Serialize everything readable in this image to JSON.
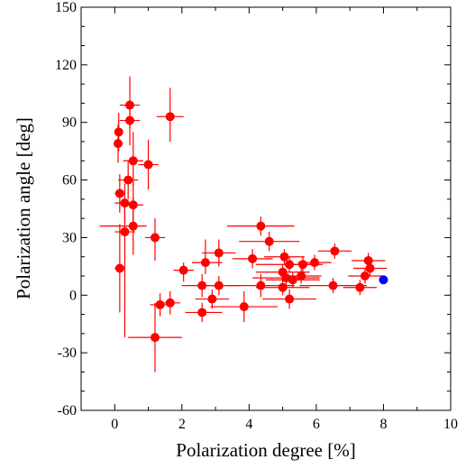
{
  "chart_data": {
    "type": "scatter",
    "title": "",
    "xlabel": "Polarization degree [%]",
    "ylabel": "Polarization angle [deg]",
    "xlim": [
      -1,
      10
    ],
    "ylim": [
      -60,
      150
    ],
    "xticks": [
      0,
      2,
      4,
      6,
      8,
      10
    ],
    "xtick_labels": [
      "0",
      "2",
      "4",
      "6",
      "8",
      "10"
    ],
    "yticks": [
      -60,
      -30,
      0,
      30,
      60,
      90,
      120,
      150
    ],
    "ytick_labels": [
      "-60",
      "-30",
      "0",
      "30",
      "60",
      "90",
      "120",
      "150"
    ],
    "grid": false,
    "legend": "none",
    "colors": {
      "main": "#ff0000",
      "highlight": "#0000ff"
    },
    "series": [
      {
        "color": "#ff0000",
        "points": [
          {
            "x": 0.1,
            "y": 79,
            "xerr": [
              0.1,
              0.1
            ],
            "yerr": [
              10,
              10
            ]
          },
          {
            "x": 0.12,
            "y": 85,
            "xerr": [
              0.1,
              0.1
            ],
            "yerr": [
              10,
              10
            ]
          },
          {
            "x": 0.45,
            "y": 99,
            "xerr": [
              0.3,
              0.3
            ],
            "yerr": [
              12,
              15
            ]
          },
          {
            "x": 0.45,
            "y": 91,
            "xerr": [
              0.3,
              0.3
            ],
            "yerr": [
              13,
              7
            ]
          },
          {
            "x": 0.55,
            "y": 70,
            "xerr": [
              0.3,
              0.3
            ],
            "yerr": [
              13,
              15
            ]
          },
          {
            "x": 1.0,
            "y": 68,
            "xerr": [
              0.3,
              0.3
            ],
            "yerr": [
              13,
              13
            ]
          },
          {
            "x": 1.65,
            "y": 93,
            "xerr": [
              0.4,
              0.4
            ],
            "yerr": [
              13,
              15
            ]
          },
          {
            "x": 0.4,
            "y": 60,
            "xerr": [
              0.3,
              0.3
            ],
            "yerr": [
              10,
              10
            ]
          },
          {
            "x": 0.15,
            "y": 53,
            "xerr": [
              0.15,
              0.15
            ],
            "yerr": [
              10,
              10
            ]
          },
          {
            "x": 0.3,
            "y": 48,
            "xerr": [
              0.3,
              0.3
            ],
            "yerr": [
              10,
              10
            ]
          },
          {
            "x": 0.55,
            "y": 47,
            "xerr": [
              0.3,
              0.3
            ],
            "yerr": [
              10,
              12
            ]
          },
          {
            "x": 0.55,
            "y": 36,
            "xerr": [
              1.0,
              0.4
            ],
            "yerr": [
              15,
              15
            ]
          },
          {
            "x": 0.3,
            "y": 33,
            "xerr": [
              0.3,
              0.3
            ],
            "yerr": [
              55,
              15
            ]
          },
          {
            "x": 1.2,
            "y": 30,
            "xerr": [
              0.3,
              0.3
            ],
            "yerr": [
              12,
              10
            ]
          },
          {
            "x": 0.15,
            "y": 14,
            "xerr": [
              0.15,
              0.15
            ],
            "yerr": [
              23,
              23
            ]
          },
          {
            "x": 2.05,
            "y": 13,
            "xerr": [
              0.3,
              0.3
            ],
            "yerr": [
              6,
              4
            ]
          },
          {
            "x": 2.7,
            "y": 17,
            "xerr": [
              0.4,
              0.5
            ],
            "yerr": [
              6,
              12
            ]
          },
          {
            "x": 3.1,
            "y": 22,
            "xerr": [
              0.5,
              0.5
            ],
            "yerr": [
              7,
              7
            ]
          },
          {
            "x": 4.1,
            "y": 19,
            "xerr": [
              0.6,
              0.6
            ],
            "yerr": [
              5,
              5
            ]
          },
          {
            "x": 4.35,
            "y": 36,
            "xerr": [
              1.0,
              1.0
            ],
            "yerr": [
              5,
              5
            ]
          },
          {
            "x": 4.6,
            "y": 28,
            "xerr": [
              0.9,
              0.9
            ],
            "yerr": [
              5,
              5
            ]
          },
          {
            "x": 5.05,
            "y": 20,
            "xerr": [
              0.6,
              0.6
            ],
            "yerr": [
              4,
              4
            ]
          },
          {
            "x": 5.2,
            "y": 16,
            "xerr": [
              1.0,
              1.0
            ],
            "yerr": [
              4,
              4
            ]
          },
          {
            "x": 5.0,
            "y": 12,
            "xerr": [
              0.8,
              0.8
            ],
            "yerr": [
              4,
              4
            ]
          },
          {
            "x": 5.1,
            "y": 9,
            "xerr": [
              1.0,
              1.0
            ],
            "yerr": [
              4,
              4
            ]
          },
          {
            "x": 5.3,
            "y": 8,
            "xerr": [
              0.8,
              0.8
            ],
            "yerr": [
              4,
              4
            ]
          },
          {
            "x": 5.55,
            "y": 10,
            "xerr": [
              0.6,
              0.6
            ],
            "yerr": [
              4,
              4
            ]
          },
          {
            "x": 5.6,
            "y": 16,
            "xerr": [
              0.5,
              0.5
            ],
            "yerr": [
              4,
              4
            ]
          },
          {
            "x": 5.95,
            "y": 17,
            "xerr": [
              0.5,
              0.5
            ],
            "yerr": [
              4,
              4
            ]
          },
          {
            "x": 6.55,
            "y": 23,
            "xerr": [
              0.5,
              0.5
            ],
            "yerr": [
              4,
              4
            ]
          },
          {
            "x": 7.55,
            "y": 18,
            "xerr": [
              0.5,
              0.5
            ],
            "yerr": [
              4,
              4
            ]
          },
          {
            "x": 7.6,
            "y": 14,
            "xerr": [
              0.5,
              0.5
            ],
            "yerr": [
              4,
              4
            ]
          },
          {
            "x": 7.45,
            "y": 10,
            "xerr": [
              0.5,
              0.5
            ],
            "yerr": [
              4,
              4
            ]
          },
          {
            "x": 7.3,
            "y": 4,
            "xerr": [
              0.5,
              0.5
            ],
            "yerr": [
              4,
              4
            ]
          },
          {
            "x": 6.5,
            "y": 5,
            "xerr": [
              1.0,
              1.0
            ],
            "yerr": [
              4,
              4
            ]
          },
          {
            "x": 5.0,
            "y": 4,
            "xerr": [
              0.8,
              0.8
            ],
            "yerr": [
              4,
              4
            ]
          },
          {
            "x": 4.35,
            "y": 5,
            "xerr": [
              1.0,
              1.0
            ],
            "yerr": [
              6,
              6
            ]
          },
          {
            "x": 3.1,
            "y": 5,
            "xerr": [
              0.6,
              0.6
            ],
            "yerr": [
              5,
              5
            ]
          },
          {
            "x": 2.6,
            "y": 5,
            "xerr": [
              0.6,
              0.6
            ],
            "yerr": [
              6,
              6
            ]
          },
          {
            "x": 2.9,
            "y": -2,
            "xerr": [
              0.5,
              0.5
            ],
            "yerr": [
              5,
              5
            ]
          },
          {
            "x": 5.2,
            "y": -2,
            "xerr": [
              0.8,
              0.8
            ],
            "yerr": [
              5,
              5
            ]
          },
          {
            "x": 3.85,
            "y": -6,
            "xerr": [
              1.0,
              1.0
            ],
            "yerr": [
              8,
              8
            ]
          },
          {
            "x": 2.6,
            "y": -9,
            "xerr": [
              0.5,
              0.6
            ],
            "yerr": [
              5,
              5
            ]
          },
          {
            "x": 1.35,
            "y": -5,
            "xerr": [
              0.3,
              0.3
            ],
            "yerr": [
              6,
              6
            ]
          },
          {
            "x": 1.65,
            "y": -4,
            "xerr": [
              0.3,
              0.3
            ],
            "yerr": [
              6,
              6
            ]
          },
          {
            "x": 1.2,
            "y": -22,
            "xerr": [
              0.8,
              0.8
            ],
            "yerr": [
              18,
              18
            ]
          }
        ]
      },
      {
        "color": "#0000ff",
        "points": [
          {
            "x": 8.0,
            "y": 8,
            "xerr": [
              0,
              0
            ],
            "yerr": [
              0,
              0
            ]
          }
        ]
      }
    ]
  }
}
